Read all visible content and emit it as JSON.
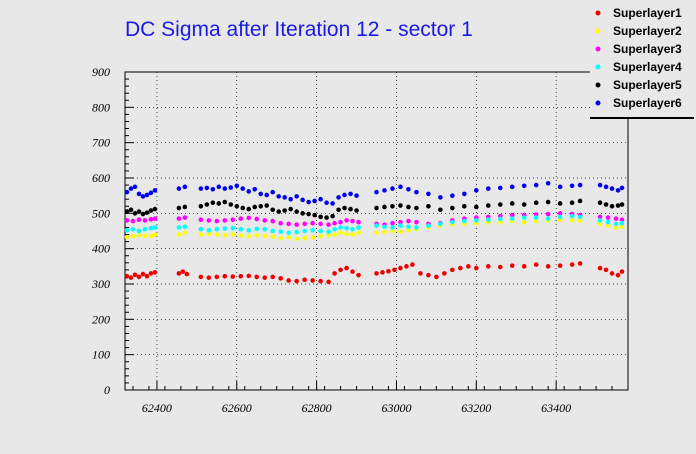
{
  "chart_data": {
    "type": "scatter",
    "title": "DC Sigma after Iteration 12 - sector 1",
    "xlabel": "",
    "ylabel": "",
    "xlim": [
      62320,
      63580
    ],
    "ylim": [
      0,
      900
    ],
    "xticks": [
      62400,
      62600,
      62800,
      63000,
      63200,
      63400
    ],
    "yticks": [
      0,
      100,
      200,
      300,
      400,
      500,
      600,
      700,
      800,
      900
    ],
    "grid": true,
    "legend_position": "top-right",
    "series": [
      {
        "name": "Superlayer1",
        "color": "#ee0000",
        "x": [
          62325,
          62335,
          62345,
          62355,
          62365,
          62375,
          62385,
          62395,
          62455,
          62465,
          62475,
          62510,
          62530,
          62550,
          62570,
          62590,
          62610,
          62630,
          62650,
          62670,
          62690,
          62710,
          62730,
          62750,
          62770,
          62790,
          62810,
          62830,
          62845,
          62860,
          62875,
          62890,
          62905,
          62950,
          62965,
          62980,
          62995,
          63010,
          63025,
          63040,
          63060,
          63080,
          63100,
          63120,
          63140,
          63160,
          63180,
          63200,
          63230,
          63260,
          63290,
          63320,
          63350,
          63380,
          63410,
          63440,
          63460,
          63510,
          63525,
          63540,
          63555,
          63565
        ],
        "y": [
          322,
          318,
          326,
          320,
          328,
          322,
          330,
          333,
          330,
          335,
          328,
          320,
          318,
          320,
          322,
          321,
          322,
          323,
          320,
          318,
          320,
          316,
          310,
          308,
          312,
          310,
          308,
          306,
          330,
          340,
          345,
          335,
          325,
          330,
          333,
          336,
          340,
          345,
          350,
          355,
          330,
          325,
          320,
          330,
          340,
          345,
          350,
          345,
          350,
          348,
          352,
          350,
          355,
          350,
          352,
          355,
          358,
          345,
          340,
          330,
          325,
          335
        ]
      },
      {
        "name": "Superlayer2",
        "color": "#ffff00",
        "x": [
          62325,
          62340,
          62355,
          62370,
          62385,
          62395,
          62455,
          62470,
          62510,
          62530,
          62550,
          62570,
          62590,
          62610,
          62630,
          62650,
          62670,
          62690,
          62710,
          62730,
          62750,
          62770,
          62790,
          62810,
          62830,
          62845,
          62860,
          62875,
          62890,
          62905,
          62950,
          62970,
          62990,
          63010,
          63030,
          63050,
          63080,
          63110,
          63140,
          63170,
          63200,
          63230,
          63260,
          63290,
          63320,
          63350,
          63380,
          63410,
          63440,
          63460,
          63510,
          63530,
          63550,
          63565
        ],
        "y": [
          433,
          435,
          438,
          437,
          436,
          440,
          440,
          445,
          440,
          442,
          440,
          438,
          440,
          437,
          435,
          438,
          436,
          434,
          430,
          432,
          428,
          430,
          432,
          435,
          438,
          440,
          445,
          442,
          440,
          445,
          445,
          447,
          450,
          448,
          452,
          455,
          460,
          465,
          468,
          470,
          472,
          475,
          475,
          478,
          475,
          478,
          480,
          482,
          480,
          480,
          470,
          465,
          460,
          462
        ]
      },
      {
        "name": "Superlayer3",
        "color": "#ff00ff",
        "x": [
          62325,
          62340,
          62355,
          62370,
          62385,
          62395,
          62455,
          62470,
          62510,
          62530,
          62550,
          62570,
          62590,
          62610,
          62630,
          62650,
          62670,
          62690,
          62710,
          62730,
          62750,
          62770,
          62790,
          62810,
          62830,
          62845,
          62860,
          62875,
          62890,
          62905,
          62950,
          62970,
          62990,
          63010,
          63030,
          63050,
          63080,
          63110,
          63140,
          63170,
          63200,
          63230,
          63260,
          63290,
          63320,
          63350,
          63380,
          63410,
          63440,
          63460,
          63510,
          63530,
          63550,
          63565
        ],
        "y": [
          480,
          478,
          482,
          480,
          483,
          485,
          485,
          488,
          482,
          480,
          478,
          480,
          482,
          485,
          487,
          484,
          480,
          478,
          472,
          470,
          468,
          470,
          472,
          470,
          468,
          472,
          475,
          480,
          478,
          475,
          470,
          468,
          472,
          475,
          478,
          475,
          470,
          472,
          480,
          485,
          488,
          490,
          492,
          495,
          495,
          497,
          498,
          500,
          498,
          495,
          490,
          488,
          485,
          482
        ]
      },
      {
        "name": "Superlayer4",
        "color": "#00ffff",
        "x": [
          62325,
          62340,
          62355,
          62370,
          62385,
          62395,
          62455,
          62470,
          62510,
          62530,
          62550,
          62570,
          62590,
          62610,
          62630,
          62650,
          62670,
          62690,
          62710,
          62730,
          62750,
          62770,
          62790,
          62810,
          62830,
          62845,
          62860,
          62875,
          62890,
          62905,
          62950,
          62970,
          62990,
          63010,
          63030,
          63050,
          63080,
          63110,
          63140,
          63170,
          63200,
          63230,
          63260,
          63290,
          63320,
          63350,
          63380,
          63410,
          63440,
          63460,
          63510,
          63530,
          63550,
          63565
        ],
        "y": [
          452,
          455,
          450,
          455,
          458,
          460,
          460,
          462,
          455,
          452,
          455,
          457,
          458,
          455,
          452,
          456,
          455,
          450,
          448,
          445,
          447,
          450,
          452,
          450,
          448,
          455,
          460,
          458,
          455,
          460,
          465,
          462,
          460,
          465,
          462,
          460,
          465,
          470,
          475,
          478,
          480,
          482,
          484,
          485,
          488,
          488,
          485,
          490,
          492,
          490,
          480,
          475,
          470,
          472
        ]
      },
      {
        "name": "Superlayer5",
        "color": "#000000",
        "x": [
          62325,
          62335,
          62345,
          62355,
          62365,
          62375,
          62385,
          62395,
          62455,
          62470,
          62510,
          62525,
          62540,
          62555,
          62570,
          62585,
          62600,
          62615,
          62630,
          62645,
          62660,
          62675,
          62690,
          62705,
          62720,
          62735,
          62750,
          62765,
          62780,
          62795,
          62810,
          62825,
          62840,
          62855,
          62870,
          62885,
          62900,
          62950,
          62970,
          62990,
          63010,
          63030,
          63050,
          63080,
          63110,
          63140,
          63170,
          63200,
          63230,
          63260,
          63290,
          63320,
          63350,
          63380,
          63410,
          63440,
          63460,
          63510,
          63525,
          63540,
          63555,
          63565
        ],
        "y": [
          505,
          510,
          500,
          505,
          498,
          502,
          508,
          512,
          515,
          518,
          520,
          525,
          530,
          528,
          532,
          525,
          520,
          515,
          512,
          518,
          520,
          522,
          510,
          505,
          508,
          512,
          505,
          500,
          498,
          495,
          490,
          488,
          492,
          510,
          515,
          512,
          508,
          515,
          518,
          520,
          522,
          518,
          515,
          520,
          510,
          515,
          520,
          518,
          522,
          525,
          528,
          525,
          530,
          532,
          528,
          530,
          535,
          530,
          525,
          520,
          522,
          525
        ]
      },
      {
        "name": "Superlayer6",
        "color": "#0000ee",
        "x": [
          62325,
          62335,
          62345,
          62355,
          62365,
          62375,
          62385,
          62395,
          62455,
          62470,
          62510,
          62525,
          62540,
          62555,
          62570,
          62585,
          62600,
          62615,
          62630,
          62645,
          62660,
          62675,
          62690,
          62705,
          62720,
          62735,
          62750,
          62765,
          62780,
          62795,
          62810,
          62825,
          62840,
          62855,
          62870,
          62885,
          62900,
          62950,
          62970,
          62990,
          63010,
          63030,
          63050,
          63080,
          63110,
          63140,
          63170,
          63200,
          63230,
          63260,
          63290,
          63320,
          63350,
          63380,
          63410,
          63440,
          63460,
          63510,
          63525,
          63540,
          63555,
          63565
        ],
        "y": [
          560,
          570,
          575,
          555,
          548,
          552,
          558,
          565,
          570,
          575,
          570,
          572,
          568,
          575,
          570,
          573,
          578,
          570,
          562,
          568,
          555,
          552,
          560,
          548,
          545,
          540,
          548,
          538,
          532,
          535,
          540,
          530,
          528,
          545,
          552,
          555,
          550,
          560,
          565,
          570,
          575,
          568,
          560,
          555,
          545,
          550,
          555,
          565,
          570,
          572,
          575,
          578,
          580,
          585,
          575,
          578,
          580,
          580,
          575,
          570,
          565,
          572
        ]
      }
    ]
  }
}
